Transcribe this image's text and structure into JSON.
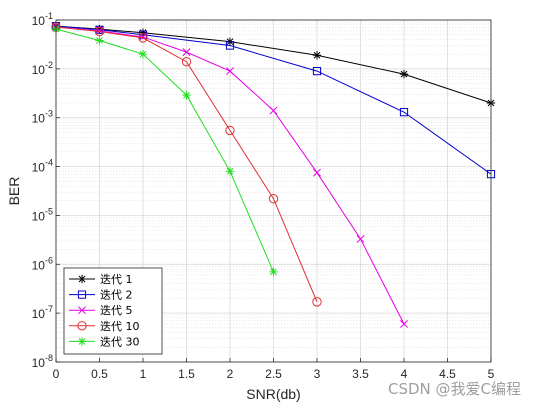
{
  "chart_data": {
    "type": "line",
    "title": "",
    "xlabel": "SNR(db)",
    "ylabel": "BER",
    "xlim": [
      0,
      5
    ],
    "ylim": [
      1e-08,
      0.1
    ],
    "yscale": "log",
    "grid": true,
    "minor_grid": true,
    "legend_position": "bottom-left",
    "x_ticks": [
      "0",
      "0.5",
      "1",
      "1.5",
      "2",
      "2.5",
      "3",
      "3.5",
      "4",
      "4.5",
      "5"
    ],
    "y_ticks": [
      {
        "base": "10",
        "exp": "-8"
      },
      {
        "base": "10",
        "exp": "-7"
      },
      {
        "base": "10",
        "exp": "-6"
      },
      {
        "base": "10",
        "exp": "-5"
      },
      {
        "base": "10",
        "exp": "-4"
      },
      {
        "base": "10",
        "exp": "-3"
      },
      {
        "base": "10",
        "exp": "-2"
      },
      {
        "base": "10",
        "exp": "-1"
      }
    ],
    "series": [
      {
        "name": "迭代 1",
        "color": "#000000",
        "marker": "star",
        "x": [
          0,
          0.5,
          1,
          2,
          3,
          4,
          5
        ],
        "y": [
          0.075,
          0.065,
          0.055,
          0.036,
          0.019,
          0.0078,
          0.002
        ]
      },
      {
        "name": "迭代 2",
        "color": "#0000cc",
        "marker": "square",
        "x": [
          0,
          0.5,
          1,
          2,
          3,
          4,
          5
        ],
        "y": [
          0.075,
          0.063,
          0.05,
          0.03,
          0.009,
          0.0013,
          7e-05
        ]
      },
      {
        "name": "迭代 5",
        "color": "#e600e6",
        "marker": "x",
        "x": [
          0,
          0.5,
          1,
          1.5,
          2,
          2.5,
          3,
          3.5,
          4
        ],
        "y": [
          0.072,
          0.06,
          0.045,
          0.022,
          0.009,
          0.0014,
          7.5e-05,
          3.3e-06,
          6e-08
        ]
      },
      {
        "name": "迭代 10",
        "color": "#e03030",
        "marker": "circle",
        "x": [
          0,
          0.5,
          1,
          1.5,
          2,
          2.5,
          3
        ],
        "y": [
          0.072,
          0.058,
          0.043,
          0.014,
          0.00055,
          2.2e-05,
          1.7e-07
        ]
      },
      {
        "name": "迭代 30",
        "color": "#22dd22",
        "marker": "star",
        "x": [
          0,
          0.5,
          1,
          1.5,
          2,
          2.5
        ],
        "y": [
          0.065,
          0.038,
          0.02,
          0.0029,
          8e-05,
          7e-07
        ]
      }
    ]
  },
  "watermark": "CSDN @我爱C编程"
}
